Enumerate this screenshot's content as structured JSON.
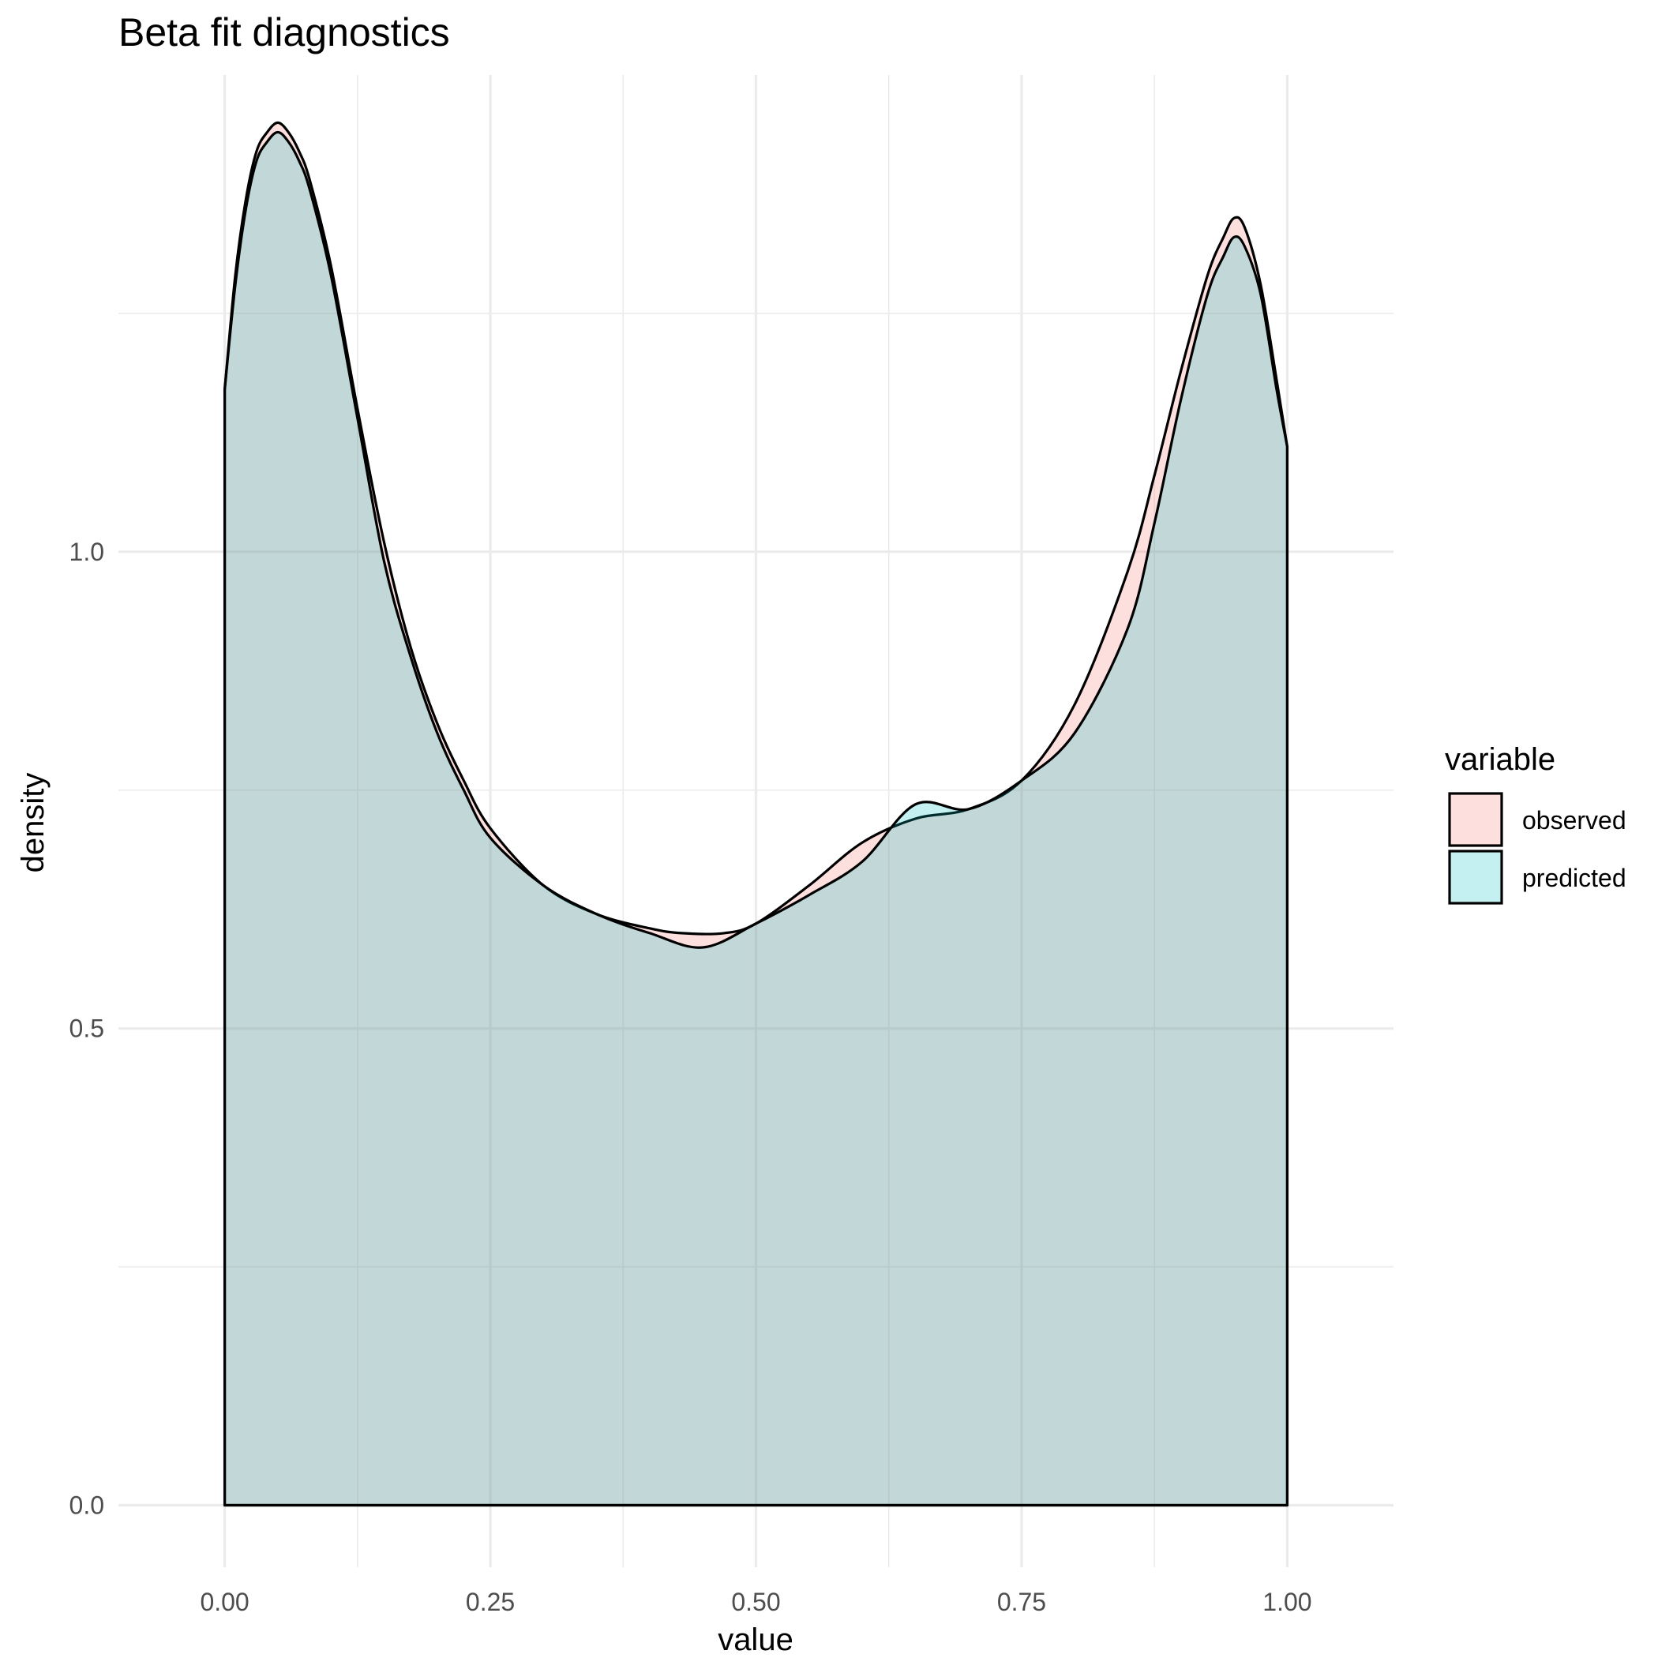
{
  "chart_data": {
    "type": "area",
    "title": "Beta fit diagnostics",
    "xlabel": "value",
    "ylabel": "density",
    "xlim": [
      -0.1,
      1.1
    ],
    "ylim": [
      -0.065,
      1.5
    ],
    "x_ticks": [
      0.0,
      0.25,
      0.5,
      0.75,
      1.0
    ],
    "x_tick_labels": [
      "0.00",
      "0.25",
      "0.50",
      "0.75",
      "1.00"
    ],
    "y_ticks": [
      0.0,
      0.5,
      1.0
    ],
    "y_tick_labels": [
      "0.0",
      "0.5",
      "1.0"
    ],
    "grid": true,
    "legend_title": "variable",
    "legend_position": "right",
    "series": [
      {
        "name": "observed",
        "color": "#F8766D",
        "x": [
          0.0,
          0.01,
          0.02,
          0.03,
          0.04,
          0.05,
          0.06,
          0.07,
          0.08,
          0.1,
          0.125,
          0.15,
          0.175,
          0.2,
          0.225,
          0.25,
          0.3,
          0.35,
          0.4,
          0.43,
          0.47,
          0.5,
          0.55,
          0.6,
          0.65,
          0.7,
          0.75,
          0.8,
          0.85,
          0.875,
          0.9,
          0.925,
          0.94,
          0.95,
          0.96,
          0.975,
          0.99,
          1.0
        ],
        "y": [
          1.17,
          1.29,
          1.37,
          1.42,
          1.44,
          1.45,
          1.44,
          1.42,
          1.39,
          1.3,
          1.15,
          1.01,
          0.9,
          0.82,
          0.76,
          0.71,
          0.65,
          0.62,
          0.605,
          0.6,
          0.6,
          0.61,
          0.65,
          0.695,
          0.72,
          0.73,
          0.76,
          0.84,
          0.98,
          1.08,
          1.19,
          1.29,
          1.33,
          1.35,
          1.34,
          1.28,
          1.18,
          1.11
        ]
      },
      {
        "name": "predicted",
        "color": "#00BFC4",
        "x": [
          0.0,
          0.01,
          0.02,
          0.03,
          0.04,
          0.05,
          0.06,
          0.07,
          0.08,
          0.1,
          0.125,
          0.15,
          0.175,
          0.2,
          0.225,
          0.25,
          0.3,
          0.35,
          0.4,
          0.45,
          0.5,
          0.55,
          0.6,
          0.65,
          0.7,
          0.75,
          0.8,
          0.85,
          0.875,
          0.9,
          0.925,
          0.94,
          0.95,
          0.96,
          0.975,
          0.99,
          1.0
        ],
        "y": [
          1.17,
          1.28,
          1.36,
          1.41,
          1.43,
          1.44,
          1.43,
          1.41,
          1.38,
          1.29,
          1.14,
          0.99,
          0.89,
          0.81,
          0.75,
          0.7,
          0.65,
          0.62,
          0.6,
          0.585,
          0.61,
          0.64,
          0.675,
          0.735,
          0.73,
          0.76,
          0.81,
          0.92,
          1.03,
          1.16,
          1.27,
          1.31,
          1.33,
          1.32,
          1.27,
          1.17,
          1.11
        ]
      }
    ]
  }
}
